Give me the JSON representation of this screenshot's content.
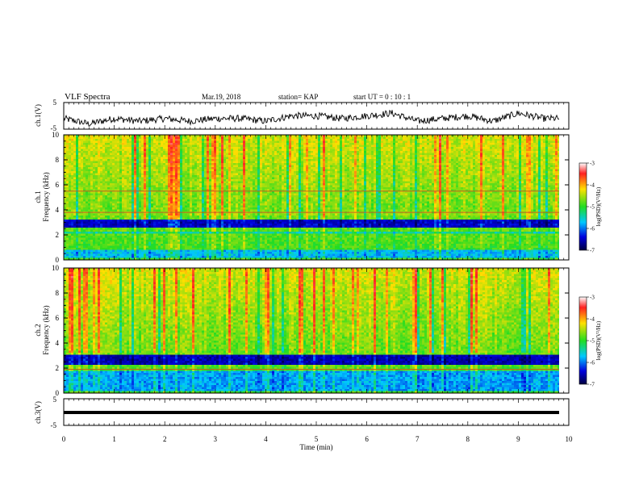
{
  "header": {
    "title": "VLF Spectra",
    "date": "Mar.19, 2018",
    "station": "station= KAP",
    "start_ut": "start  UT  =   0  : 10 : 1"
  },
  "chart_data": [
    {
      "type": "line",
      "name": "ch1-waveform",
      "ylabel": "ch.1(V)",
      "ylim": [
        -5,
        5
      ],
      "yticks": [
        "5",
        "-5"
      ],
      "xlim": [
        0,
        10
      ],
      "description_values": {
        "x": [
          0,
          0.5,
          1,
          1.5,
          2,
          2.5,
          3,
          3.5,
          4,
          4.5,
          5,
          5.5,
          6,
          6.5,
          7,
          7.5,
          8,
          8.5,
          9,
          9.5,
          9.8
        ],
        "y": [
          -1,
          -3,
          -1,
          -2,
          -1,
          -2,
          -1,
          -1,
          -2,
          0,
          0,
          -1,
          0,
          1,
          -2,
          -1,
          0,
          -2,
          1,
          -1,
          -1
        ]
      }
    },
    {
      "type": "heatmap",
      "name": "ch1-spectrogram",
      "ylabel": "ch.1\nFrequency  (kHz)",
      "ylabel_top": "ch.1",
      "ylabel_bottom": "Frequency  (kHz)",
      "ylim": [
        0,
        10
      ],
      "yticks": [
        "0",
        "2",
        "4",
        "6",
        "8",
        "10"
      ],
      "xlim": [
        0,
        10
      ],
      "colorbar": {
        "label": "log(PSD)(V²/Hz)",
        "ticks": [
          "-3",
          "-4",
          "-5",
          "-6",
          "-7"
        ],
        "range": [
          -7,
          -3
        ]
      },
      "bands_kHz": [
        {
          "from": 2.6,
          "to": 3.3,
          "level": -6.5
        },
        {
          "from": 2.1,
          "to": 2.3,
          "level": -5.5
        },
        {
          "from": 0.1,
          "to": 0.8,
          "level": -5.8
        },
        {
          "from": 3.6,
          "to": 3.9,
          "level": -4.8
        }
      ],
      "lines_kHz": [
        5.5,
        3.8
      ]
    },
    {
      "type": "heatmap",
      "name": "ch2-spectrogram",
      "ylabel_top": "ch.2",
      "ylabel_bottom": "Frequency  (kHz)",
      "ylim": [
        0,
        10
      ],
      "yticks": [
        "0",
        "2",
        "4",
        "6",
        "8",
        "10"
      ],
      "xlim": [
        0,
        10
      ],
      "colorbar": {
        "label": "log(PSD)(V²/Hz)",
        "ticks": [
          "-3",
          "-4",
          "-5",
          "-6",
          "-7"
        ],
        "range": [
          -7,
          -3
        ]
      },
      "bands_kHz": [
        {
          "from": 2.2,
          "to": 3.1,
          "level": -6.6
        },
        {
          "from": 0.1,
          "to": 1.8,
          "level": -5.9
        },
        {
          "from": 1.9,
          "to": 2.0,
          "level": -4.5
        }
      ],
      "lines_kHz": [
        1.9
      ]
    },
    {
      "type": "line",
      "name": "ch3-waveform",
      "ylabel": "ch.3(V)",
      "ylim": [
        -5,
        5
      ],
      "yticks": [
        "5",
        "-5"
      ],
      "xlim": [
        0,
        10
      ],
      "x": [
        0,
        9.8
      ],
      "y": [
        -1,
        -1
      ]
    }
  ],
  "xaxis": {
    "label": "Time  (min)",
    "ticks": [
      "0",
      "1",
      "2",
      "3",
      "4",
      "5",
      "6",
      "7",
      "8",
      "9",
      "10"
    ]
  }
}
